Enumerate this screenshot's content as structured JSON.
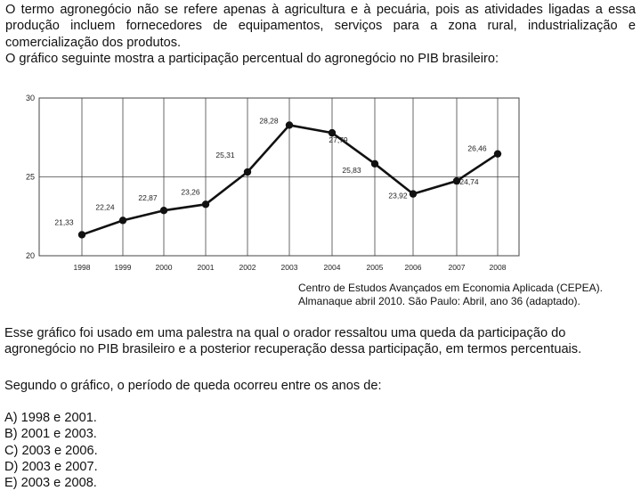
{
  "question": {
    "intro_paragraph": "O termo agronegócio não se refere apenas à agricultura e à pecuária, pois as atividades ligadas a essa produção incluem fornecedores de equipamentos, serviços para a zona rural, industrialização e comercialização dos produtos.",
    "chart_intro": "O gráfico seguinte mostra a participação percentual do agronegócio no PIB brasileiro:",
    "source_line1": "Centro de Estudos Avançados em Economia Aplicada (CEPEA).",
    "source_line2": "Almanaque abril 2010. São Paulo: Abril, ano 36 (adaptado).",
    "context": "Esse gráfico foi usado em uma palestra na qual o orador ressaltou uma queda da participação do agronegócio no PIB brasileiro e a posterior recuperação dessa participação, em termos percentuais.",
    "prompt": "Segundo o gráfico, o período de queda ocorreu entre os anos de:",
    "options": [
      "A) 1998 e 2001.",
      "B) 2001 e 2003.",
      "C) 2003 e 2006.",
      "D) 2003 e 2007.",
      "E) 2003 e 2008."
    ]
  },
  "chart_data": {
    "type": "line",
    "title": "",
    "xlabel": "",
    "ylabel": "",
    "categories": [
      "1998",
      "1999",
      "2000",
      "2001",
      "2002",
      "2003",
      "2004",
      "2005",
      "2006",
      "2007",
      "2008"
    ],
    "values": [
      21.33,
      22.24,
      22.87,
      23.26,
      25.31,
      28.28,
      27.79,
      25.83,
      23.92,
      24.74,
      26.46
    ],
    "data_labels": [
      "21,33",
      "22,24",
      "22,87",
      "23,26",
      "25,31",
      "28,28",
      "27,79",
      "25,83",
      "23,92",
      "24,74",
      "26,46"
    ],
    "ylim": [
      20,
      30
    ],
    "yticks": [
      "20",
      "25",
      "30"
    ],
    "grid": true,
    "line_color": "#111111",
    "grid_color": "#444444"
  }
}
